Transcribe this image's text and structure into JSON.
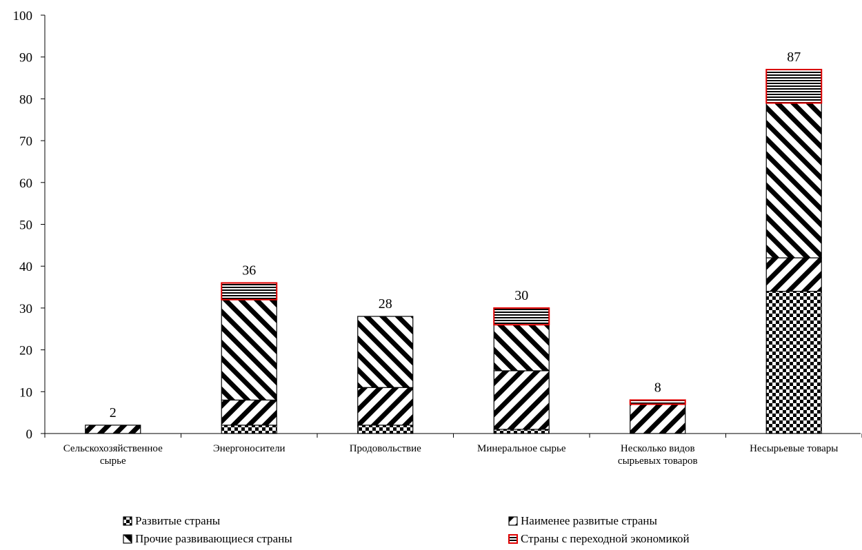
{
  "chart_data": {
    "type": "bar",
    "stacked": true,
    "categories": [
      [
        "Сельскохозяйственное",
        "сырье"
      ],
      [
        "Энергоносители"
      ],
      [
        "Продовольствие"
      ],
      [
        "Минеральное сырье"
      ],
      [
        "Несколько видов",
        "сырьевых товаров"
      ],
      [
        "Несырьевые товары"
      ]
    ],
    "series": [
      {
        "name": "Развитые страны",
        "pattern": "checker",
        "values": [
          0,
          2,
          2,
          1,
          0,
          34
        ]
      },
      {
        "name": "Наименее развитые страны",
        "pattern": "diag-up",
        "values": [
          2,
          6,
          9,
          14,
          7,
          8
        ]
      },
      {
        "name": "Прочие развивающиеся страны",
        "pattern": "diag-down",
        "values": [
          0,
          24,
          17,
          11,
          0,
          37
        ]
      },
      {
        "name": "Страны с переходной экономикой",
        "pattern": "horizontal-red",
        "values": [
          0,
          4,
          0,
          4,
          1,
          8
        ]
      }
    ],
    "totals": [
      "2",
      "36",
      "28",
      "30",
      "8",
      "87"
    ],
    "ylim": [
      0,
      100
    ],
    "yticks": [
      0,
      10,
      20,
      30,
      40,
      50,
      60,
      70,
      80,
      90,
      100
    ],
    "title": "",
    "xlabel": "",
    "ylabel": "",
    "grid": false,
    "legend_position": "bottom",
    "colors": {
      "transition_border": "#e00000",
      "ink": "#000000"
    }
  }
}
